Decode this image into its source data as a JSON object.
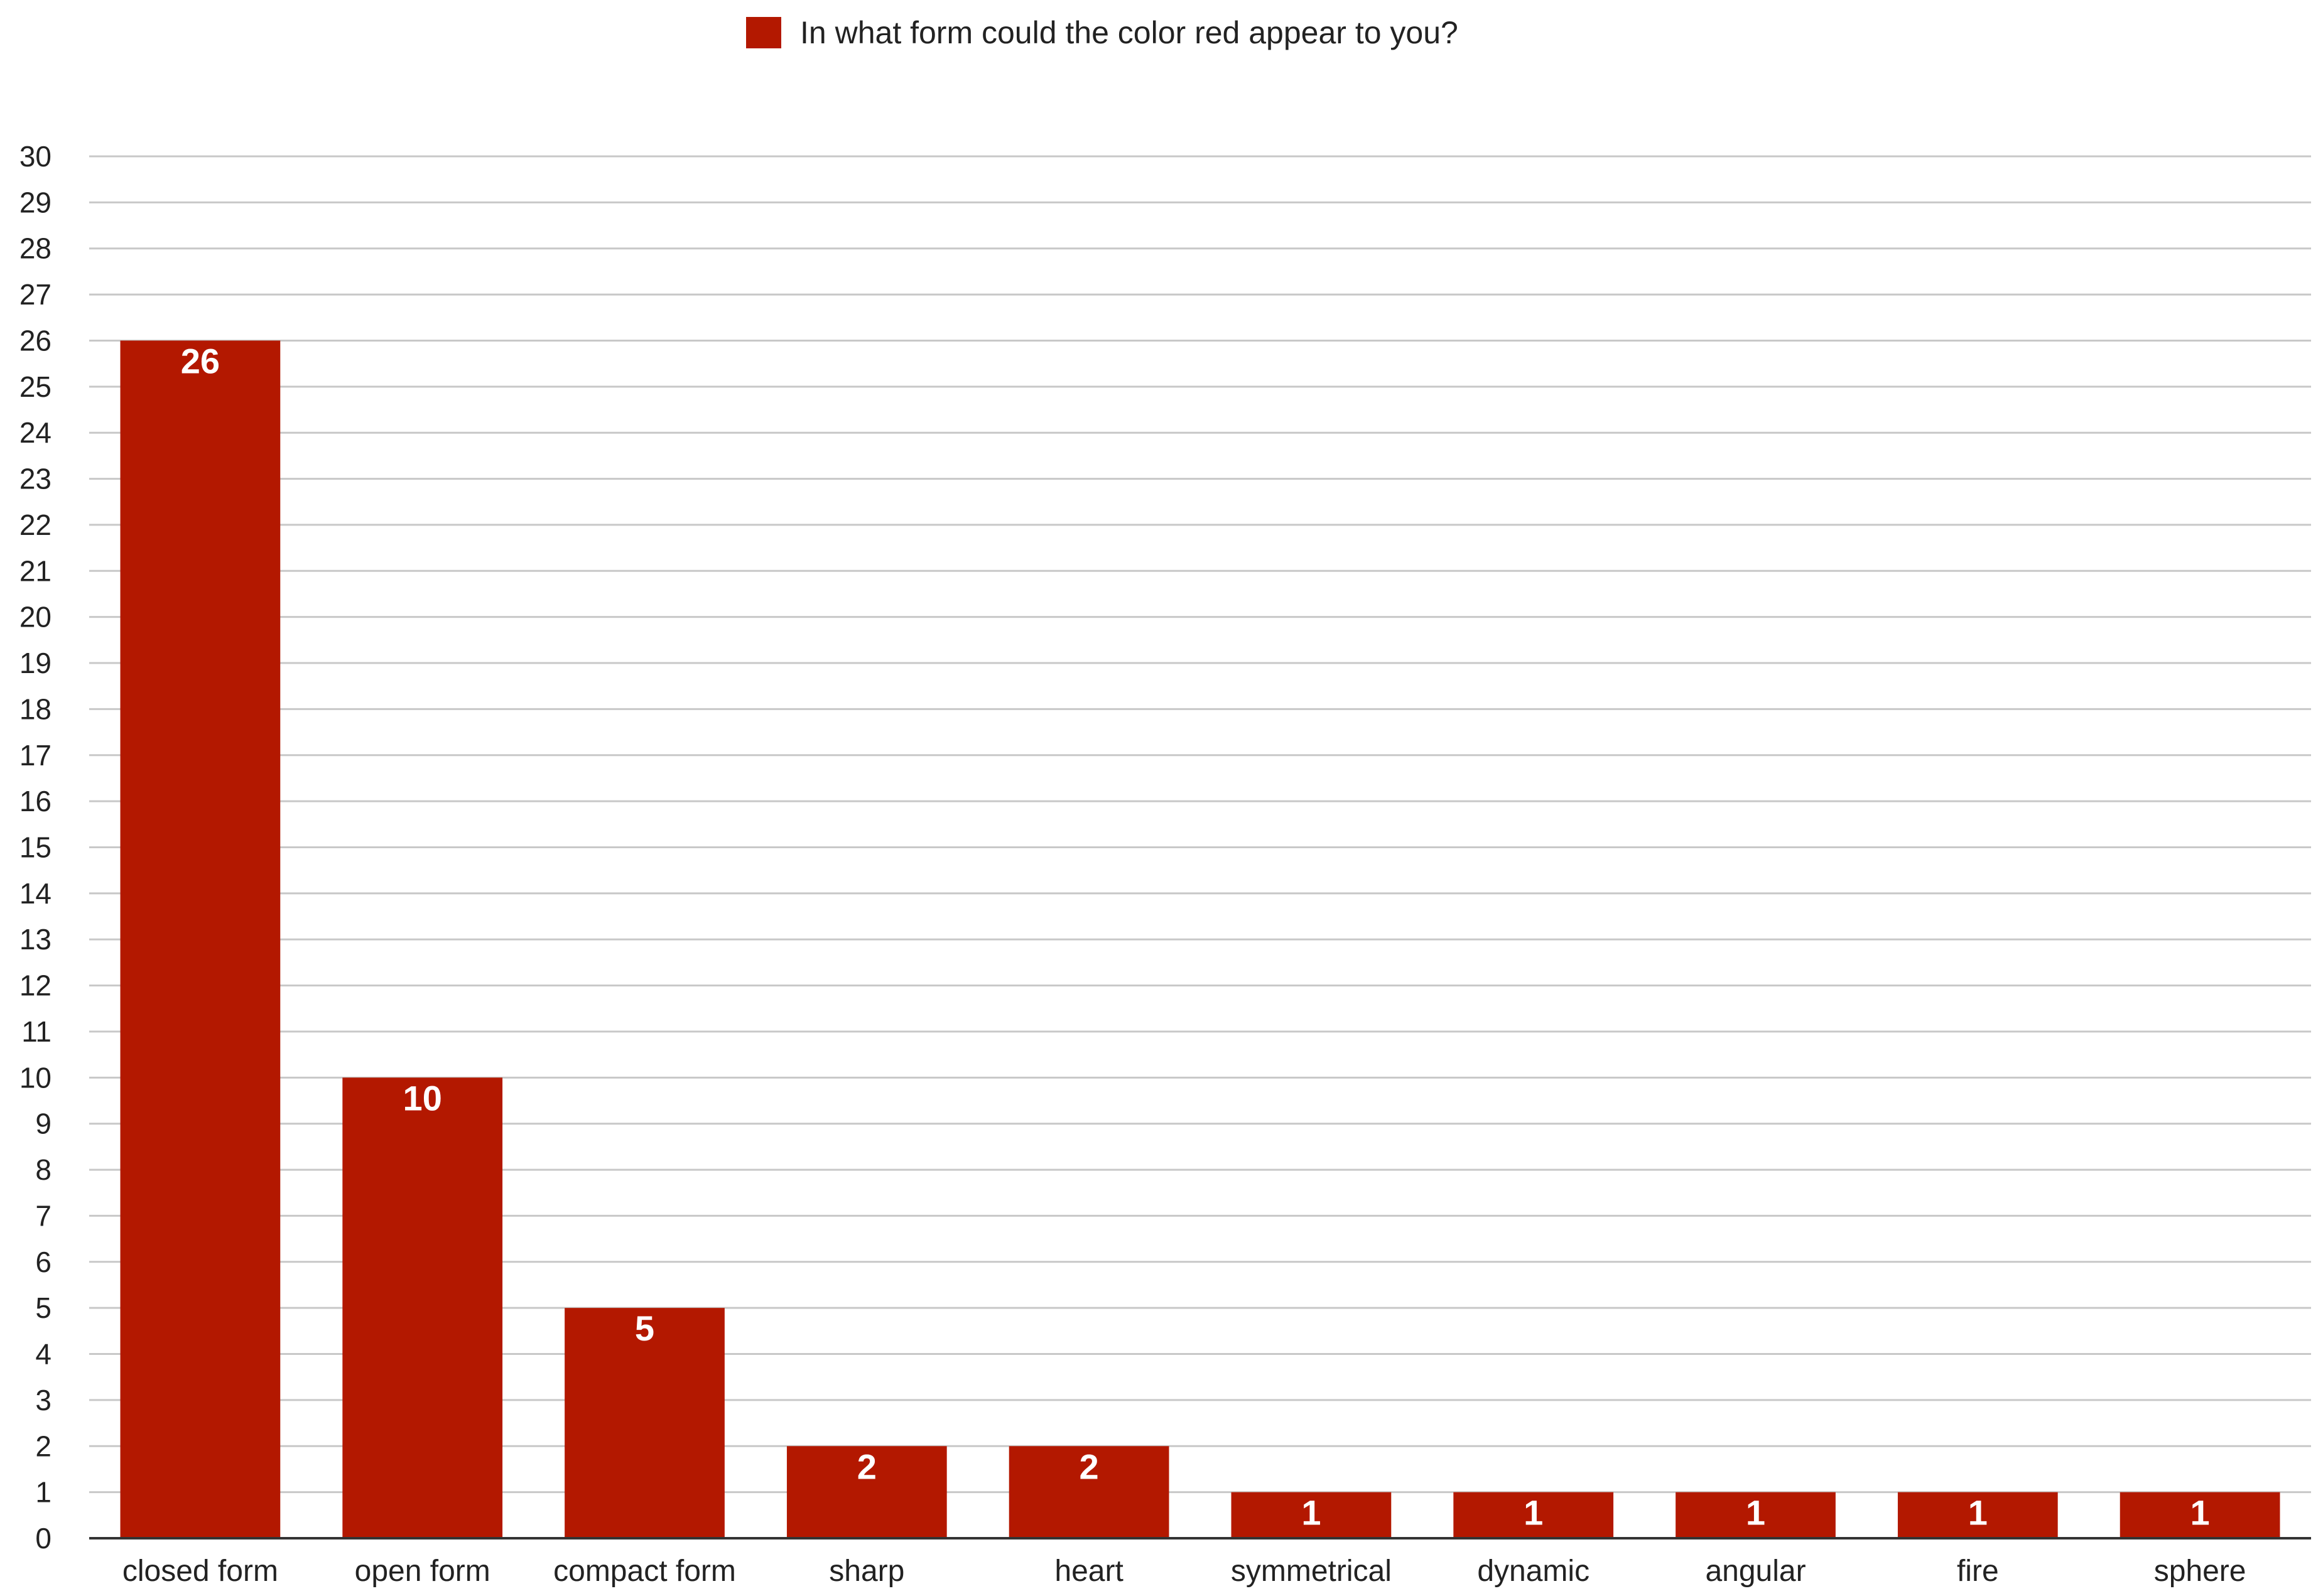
{
  "chart_data": {
    "type": "bar",
    "categories": [
      "closed form",
      "open form",
      "compact form",
      "sharp",
      "heart",
      "symmetrical",
      "dynamic",
      "angular",
      "fire",
      "sphere"
    ],
    "series": [
      {
        "name": "In what form could the color red appear to you?",
        "values": [
          26,
          10,
          5,
          2,
          2,
          1,
          1,
          1,
          1,
          1
        ]
      }
    ],
    "ylim": [
      0,
      30
    ],
    "y_ticks": [
      0,
      1,
      2,
      3,
      4,
      5,
      6,
      7,
      8,
      9,
      10,
      11,
      12,
      13,
      14,
      15,
      16,
      17,
      18,
      19,
      20,
      21,
      22,
      23,
      24,
      25,
      26,
      27,
      28,
      29,
      30
    ],
    "grid": true,
    "data_labels": true,
    "legend_position": "top-center",
    "title": "",
    "xlabel": "",
    "ylabel": ""
  },
  "colors": {
    "bar": "#b31800",
    "grid": "#c8c8c8",
    "axis": "#333333",
    "text": "#222222",
    "data_label": "#ffffff"
  }
}
